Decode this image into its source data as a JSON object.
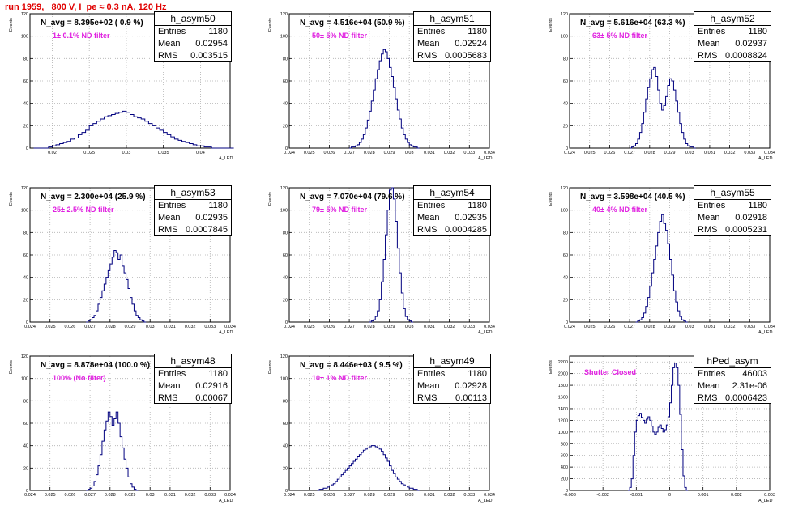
{
  "header": {
    "run_title": "run 1959,   800 V, I_pe ≈ 0.3 nA, 120 Hz"
  },
  "colors": {
    "line": "#00007f",
    "grid": "#b0b0b0",
    "title": "#e00000",
    "filter": "#e020e0"
  },
  "chart_data": [
    {
      "type": "histogram",
      "name": "h_asym50",
      "stats": {
        "entries": "1180",
        "mean": "0.02954",
        "rms": "0.003515"
      },
      "n_avg": "N_avg = 8.395e+02 ( 0.9 %)",
      "filter": "1± 0.1% ND filter",
      "xlim": [
        0.017,
        0.044
      ],
      "ylim": [
        0,
        120
      ],
      "xticks": [
        "0.02",
        "0.025",
        "0.03",
        "0.035",
        "0.04"
      ],
      "xtick_vals": [
        0.02,
        0.025,
        0.03,
        0.035,
        0.04
      ],
      "yticks": [
        "0",
        "20",
        "40",
        "60",
        "80",
        "100",
        "120"
      ],
      "ytick_vals": [
        0,
        20,
        40,
        60,
        80,
        100,
        120
      ],
      "xlabel": "A_LED",
      "ylabel": "Events",
      "bins": {
        "start": 0.0175,
        "width": 0.0005,
        "counts": [
          0,
          0,
          0,
          0,
          1,
          2,
          3,
          4,
          5,
          6,
          8,
          9,
          12,
          14,
          16,
          20,
          22,
          24,
          26,
          28,
          29,
          30,
          31,
          32,
          33,
          32,
          30,
          28,
          27,
          26,
          24,
          22,
          20,
          18,
          16,
          14,
          12,
          10,
          8,
          7,
          6,
          5,
          4,
          3,
          2,
          2,
          1,
          1,
          0,
          0,
          0,
          0,
          0,
          0
        ]
      }
    },
    {
      "type": "histogram",
      "name": "h_asym51",
      "stats": {
        "entries": "1180",
        "mean": "0.02924",
        "rms": "0.0005683"
      },
      "n_avg": "N_avg = 4.516e+04 (50.9 %)",
      "filter": "50± 5% ND filter",
      "xlim": [
        0.024,
        0.034
      ],
      "ylim": [
        0,
        120
      ],
      "xticks": [
        "0.024",
        "0.025",
        "0.026",
        "0.027",
        "0.028",
        "0.029",
        "0.03",
        "0.031",
        "0.032",
        "0.033",
        "0.034"
      ],
      "xtick_vals": [
        0.024,
        0.025,
        0.026,
        0.027,
        0.028,
        0.029,
        0.03,
        0.031,
        0.032,
        0.033,
        0.034
      ],
      "yticks": [
        "0",
        "20",
        "40",
        "60",
        "80",
        "100",
        "120"
      ],
      "ytick_vals": [
        0,
        20,
        40,
        60,
        80,
        100,
        120
      ],
      "xlabel": "A_LED",
      "ylabel": "Events",
      "bins": {
        "start": 0.027,
        "width": 0.0001,
        "counts": [
          0,
          1,
          1,
          2,
          3,
          5,
          8,
          12,
          18,
          25,
          33,
          42,
          52,
          62,
          70,
          78,
          84,
          88,
          86,
          80,
          72,
          64,
          54,
          44,
          34,
          26,
          18,
          12,
          8,
          5,
          3,
          2,
          1,
          1,
          0
        ]
      }
    },
    {
      "type": "histogram",
      "name": "h_asym52",
      "stats": {
        "entries": "1180",
        "mean": "0.02937",
        "rms": "0.0008824"
      },
      "n_avg": "N_avg = 5.616e+04 (63.3 %)",
      "filter": "63± 5% ND filter",
      "xlim": [
        0.024,
        0.034
      ],
      "ylim": [
        0,
        120
      ],
      "xticks": [
        "0.024",
        "0.025",
        "0.026",
        "0.027",
        "0.028",
        "0.029",
        "0.03",
        "0.031",
        "0.032",
        "0.033",
        "0.034"
      ],
      "xtick_vals": [
        0.024,
        0.025,
        0.026,
        0.027,
        0.028,
        0.029,
        0.03,
        0.031,
        0.032,
        0.033,
        0.034
      ],
      "yticks": [
        "0",
        "20",
        "40",
        "60",
        "80",
        "100",
        "120"
      ],
      "ytick_vals": [
        0,
        20,
        40,
        60,
        80,
        100,
        120
      ],
      "xlabel": "A_LED",
      "ylabel": "Events",
      "bins": {
        "start": 0.027,
        "width": 0.0001,
        "counts": [
          0,
          1,
          2,
          4,
          8,
          14,
          22,
          32,
          44,
          54,
          62,
          70,
          72,
          64,
          52,
          40,
          34,
          38,
          46,
          56,
          62,
          60,
          52,
          42,
          32,
          22,
          14,
          8,
          4,
          2,
          1,
          1,
          0
        ]
      }
    },
    {
      "type": "histogram",
      "name": "h_asym53",
      "stats": {
        "entries": "1180",
        "mean": "0.02935",
        "rms": "0.0007845"
      },
      "n_avg": "N_avg = 2.300e+04 (25.9 %)",
      "filter": "25± 2.5% ND filter",
      "xlim": [
        0.024,
        0.034
      ],
      "ylim": [
        0,
        120
      ],
      "xticks": [
        "0.024",
        "0.025",
        "0.026",
        "0.027",
        "0.028",
        "0.029",
        "0.03",
        "0.031",
        "0.032",
        "0.033",
        "0.034"
      ],
      "xtick_vals": [
        0.024,
        0.025,
        0.026,
        0.027,
        0.028,
        0.029,
        0.03,
        0.031,
        0.032,
        0.033,
        0.034
      ],
      "yticks": [
        "0",
        "20",
        "40",
        "60",
        "80",
        "100",
        "120"
      ],
      "ytick_vals": [
        0,
        20,
        40,
        60,
        80,
        100,
        120
      ],
      "xlabel": "A_LED",
      "ylabel": "Events",
      "bins": {
        "start": 0.0268,
        "width": 0.0001,
        "counts": [
          0,
          1,
          2,
          4,
          6,
          10,
          16,
          22,
          28,
          34,
          40,
          46,
          52,
          58,
          64,
          62,
          56,
          60,
          50,
          44,
          38,
          30,
          22,
          16,
          10,
          6,
          4,
          2,
          1,
          0
        ]
      }
    },
    {
      "type": "histogram",
      "name": "h_asym54",
      "stats": {
        "entries": "1180",
        "mean": "0.02935",
        "rms": "0.0004285"
      },
      "n_avg": "N_avg = 7.070e+04 (79.6 %)",
      "filter": "79± 5% ND filter",
      "xlim": [
        0.024,
        0.034
      ],
      "ylim": [
        0,
        120
      ],
      "xticks": [
        "0.024",
        "0.025",
        "0.026",
        "0.027",
        "0.028",
        "0.029",
        "0.03",
        "0.031",
        "0.032",
        "0.033",
        "0.034"
      ],
      "xtick_vals": [
        0.024,
        0.025,
        0.026,
        0.027,
        0.028,
        0.029,
        0.03,
        0.031,
        0.032,
        0.033,
        0.034
      ],
      "yticks": [
        "0",
        "20",
        "40",
        "60",
        "80",
        "100",
        "120"
      ],
      "ytick_vals": [
        0,
        20,
        40,
        60,
        80,
        100,
        120
      ],
      "xlabel": "A_LED",
      "ylabel": "Events",
      "bins": {
        "start": 0.028,
        "width": 0.0001,
        "counts": [
          0,
          1,
          2,
          5,
          10,
          20,
          36,
          56,
          78,
          100,
          118,
          120,
          110,
          90,
          66,
          44,
          26,
          12,
          5,
          2,
          1,
          0
        ]
      }
    },
    {
      "type": "histogram",
      "name": "h_asym55",
      "stats": {
        "entries": "1180",
        "mean": "0.02918",
        "rms": "0.0005231"
      },
      "n_avg": "N_avg = 3.598e+04 (40.5 %)",
      "filter": "40± 4% ND filter",
      "xlim": [
        0.024,
        0.034
      ],
      "ylim": [
        0,
        120
      ],
      "xticks": [
        "0.024",
        "0.025",
        "0.026",
        "0.027",
        "0.028",
        "0.029",
        "0.03",
        "0.031",
        "0.032",
        "0.033",
        "0.034"
      ],
      "xtick_vals": [
        0.024,
        0.025,
        0.026,
        0.027,
        0.028,
        0.029,
        0.03,
        0.031,
        0.032,
        0.033,
        0.034
      ],
      "yticks": [
        "0",
        "20",
        "40",
        "60",
        "80",
        "100",
        "120"
      ],
      "ytick_vals": [
        0,
        20,
        40,
        60,
        80,
        100,
        120
      ],
      "xlabel": "A_LED",
      "ylabel": "Events",
      "bins": {
        "start": 0.0273,
        "width": 0.0001,
        "counts": [
          0,
          1,
          2,
          4,
          8,
          14,
          22,
          32,
          44,
          56,
          68,
          80,
          90,
          96,
          88,
          82,
          70,
          56,
          42,
          28,
          18,
          10,
          5,
          2,
          1,
          0
        ]
      }
    },
    {
      "type": "histogram",
      "name": "h_asym48",
      "stats": {
        "entries": "1180",
        "mean": "0.02916",
        "rms": "0.00067"
      },
      "n_avg": "N_avg = 8.878e+04 (100.0 %)",
      "filter": "100% (No filter)",
      "xlim": [
        0.024,
        0.034
      ],
      "ylim": [
        0,
        120
      ],
      "xticks": [
        "0.024",
        "0.025",
        "0.026",
        "0.027",
        "0.028",
        "0.029",
        "0.03",
        "0.031",
        "0.032",
        "0.033",
        "0.034"
      ],
      "xtick_vals": [
        0.024,
        0.025,
        0.026,
        0.027,
        0.028,
        0.029,
        0.03,
        0.031,
        0.032,
        0.033,
        0.034
      ],
      "yticks": [
        "0",
        "20",
        "40",
        "60",
        "80",
        "100",
        "120"
      ],
      "ytick_vals": [
        0,
        20,
        40,
        60,
        80,
        100,
        120
      ],
      "xlabel": "A_LED",
      "ylabel": "Events",
      "bins": {
        "start": 0.0268,
        "width": 0.0001,
        "counts": [
          0,
          1,
          2,
          4,
          8,
          14,
          22,
          32,
          44,
          54,
          62,
          70,
          66,
          58,
          64,
          70,
          60,
          48,
          38,
          28,
          20,
          12,
          6,
          3,
          1,
          0
        ]
      }
    },
    {
      "type": "histogram",
      "name": "h_asym49",
      "stats": {
        "entries": "1180",
        "mean": "0.02928",
        "rms": "0.00113"
      },
      "n_avg": "N_avg = 8.446e+03 ( 9.5 %)",
      "filter": "10± 1% ND filter",
      "xlim": [
        0.024,
        0.034
      ],
      "ylim": [
        0,
        120
      ],
      "xticks": [
        "0.024",
        "0.025",
        "0.026",
        "0.027",
        "0.028",
        "0.029",
        "0.03",
        "0.031",
        "0.032",
        "0.033",
        "0.034"
      ],
      "xtick_vals": [
        0.024,
        0.025,
        0.026,
        0.027,
        0.028,
        0.029,
        0.03,
        0.031,
        0.032,
        0.033,
        0.034
      ],
      "yticks": [
        "0",
        "20",
        "40",
        "60",
        "80",
        "100",
        "120"
      ],
      "ytick_vals": [
        0,
        20,
        40,
        60,
        80,
        100,
        120
      ],
      "xlabel": "A_LED",
      "ylabel": "Events",
      "bins": {
        "start": 0.0254,
        "width": 0.0001,
        "counts": [
          0,
          1,
          1,
          2,
          2,
          3,
          4,
          5,
          6,
          8,
          10,
          12,
          14,
          16,
          18,
          20,
          22,
          24,
          26,
          28,
          30,
          32,
          34,
          36,
          37,
          38,
          39,
          40,
          40,
          39,
          38,
          37,
          35,
          32,
          29,
          26,
          22,
          18,
          15,
          12,
          10,
          8,
          6,
          5,
          4,
          3,
          2,
          2,
          1,
          1,
          0
        ]
      }
    },
    {
      "type": "histogram",
      "name": "hPed_asym",
      "stats": {
        "entries": "46003",
        "mean": "2.31e-06",
        "rms": "0.0006423"
      },
      "n_avg": "",
      "filter": "Shutter Closed",
      "xlim": [
        -0.003,
        0.003
      ],
      "ylim": [
        0,
        2300
      ],
      "xticks": [
        "-0.003",
        "-0.002",
        "-0.001",
        "0",
        "0.001",
        "0.002",
        "0.003"
      ],
      "xtick_vals": [
        -0.003,
        -0.002,
        -0.001,
        0,
        0.001,
        0.002,
        0.003
      ],
      "yticks": [
        "0",
        "200",
        "400",
        "600",
        "800",
        "1000",
        "1200",
        "1400",
        "1600",
        "1800",
        "2000",
        "2200"
      ],
      "ytick_vals": [
        0,
        200,
        400,
        600,
        800,
        1000,
        1200,
        1400,
        1600,
        1800,
        2000,
        2200
      ],
      "xlabel": "A_LED",
      "ylabel": "Events",
      "bins": {
        "start": -0.00125,
        "width": 5e-05,
        "counts": [
          0,
          50,
          200,
          600,
          1000,
          1200,
          1280,
          1320,
          1250,
          1200,
          1150,
          1220,
          1260,
          1200,
          1100,
          1000,
          960,
          1000,
          1080,
          1120,
          1060,
          1000,
          1040,
          1120,
          1260,
          1500,
          1800,
          2100,
          2180,
          2100,
          1800,
          1300,
          700,
          250,
          50,
          0
        ]
      }
    }
  ]
}
